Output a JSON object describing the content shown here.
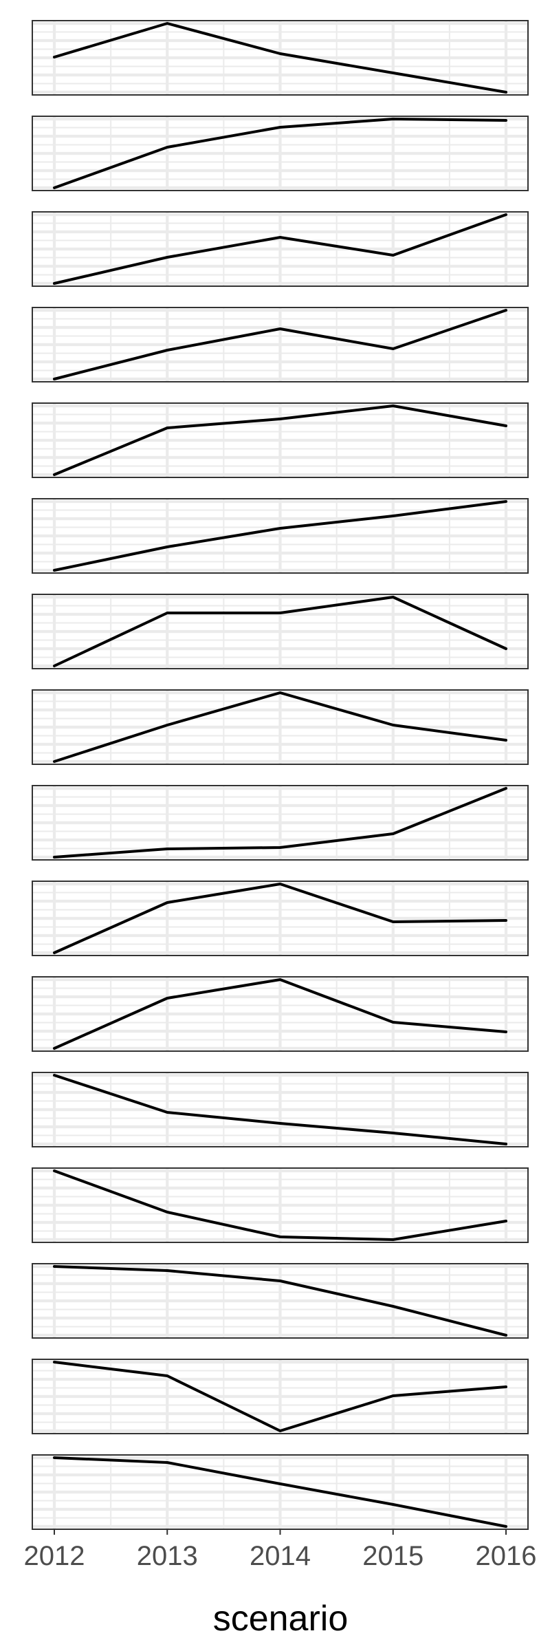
{
  "chart_data": {
    "type": "line",
    "layout": "small-multiples",
    "xlabel": "scenario",
    "categories": [
      "2012",
      "2013",
      "2014",
      "2015",
      "2016"
    ],
    "grid": true,
    "shared_x_axis": true,
    "y_scale": "free",
    "y_axis_shown": false,
    "line_color": "#000000",
    "panels": [
      {
        "values": [
          0.51,
          1.0,
          0.56,
          0.28,
          0.0
        ]
      },
      {
        "values": [
          0.0,
          0.59,
          0.88,
          1.0,
          0.98
        ]
      },
      {
        "values": [
          0.0,
          0.38,
          0.67,
          0.41,
          1.0
        ]
      },
      {
        "values": [
          0.0,
          0.42,
          0.73,
          0.44,
          1.0
        ]
      },
      {
        "values": [
          0.0,
          0.68,
          0.81,
          1.0,
          0.71
        ]
      },
      {
        "values": [
          0.0,
          0.34,
          0.61,
          0.79,
          1.0
        ]
      },
      {
        "values": [
          0.0,
          0.77,
          0.77,
          1.0,
          0.25
        ]
      },
      {
        "values": [
          0.0,
          0.53,
          1.0,
          0.53,
          0.31
        ]
      },
      {
        "values": [
          0.0,
          0.12,
          0.14,
          0.34,
          1.0
        ]
      },
      {
        "values": [
          0.0,
          0.73,
          1.0,
          0.45,
          0.47
        ]
      },
      {
        "values": [
          0.0,
          0.73,
          1.0,
          0.38,
          0.24
        ]
      },
      {
        "values": [
          1.0,
          0.46,
          0.3,
          0.16,
          0.0
        ]
      },
      {
        "values": [
          1.0,
          0.4,
          0.04,
          0.0,
          0.27
        ]
      },
      {
        "values": [
          1.0,
          0.94,
          0.79,
          0.42,
          0.0
        ]
      },
      {
        "values": [
          1.0,
          0.8,
          0.0,
          0.51,
          0.64
        ]
      },
      {
        "values": [
          1.0,
          0.93,
          0.62,
          0.32,
          0.0
        ]
      }
    ]
  }
}
